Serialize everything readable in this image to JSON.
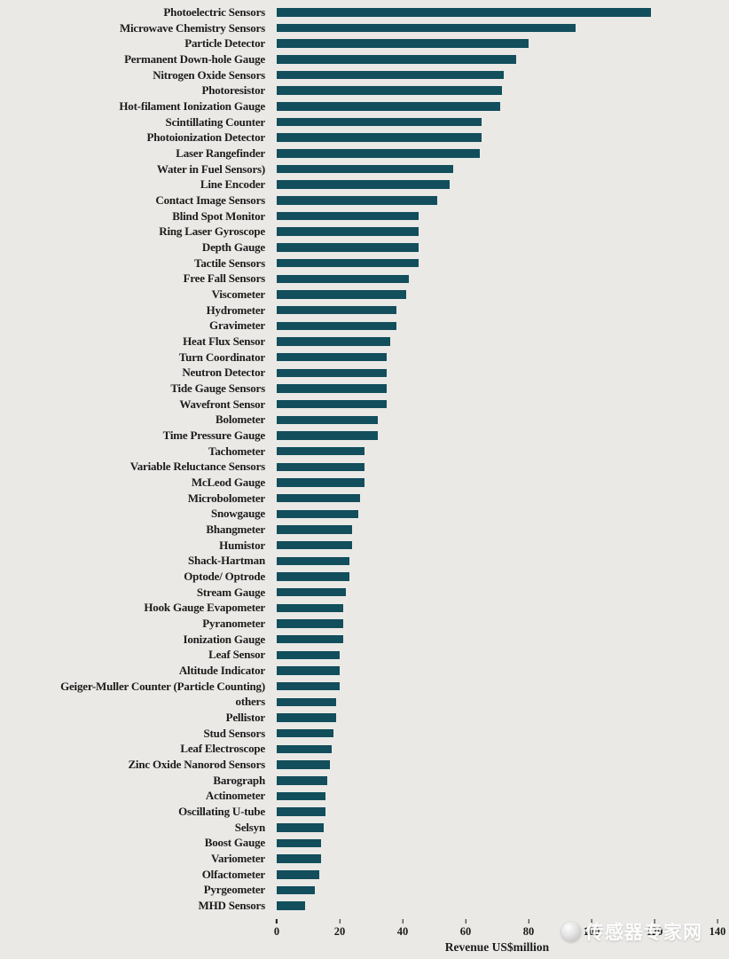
{
  "chart_data": {
    "type": "bar",
    "orientation": "horizontal",
    "title": "",
    "xlabel": "Revenue US$million",
    "ylabel": "",
    "xlim": [
      0,
      140
    ],
    "xticks": [
      0,
      20,
      40,
      60,
      80,
      100,
      120,
      140
    ],
    "grid": false,
    "legend": "none",
    "bar_color": "#124e5c",
    "categories": [
      "Photoelectric Sensors",
      "Microwave Chemistry Sensors",
      "Particle Detector",
      "Permanent Down-hole Gauge",
      "Nitrogen Oxide Sensors",
      "Photoresistor",
      "Hot-filament Ionization Gauge",
      "Scintillating Counter",
      "Photoionization Detector",
      "Laser Rangefinder",
      "Water in Fuel Sensors)",
      "Line Encoder",
      "Contact Image Sensors",
      "Blind Spot Monitor",
      "Ring Laser Gyroscope",
      "Depth Gauge",
      "Tactile Sensors",
      "Free Fall Sensors",
      "Viscometer",
      "Hydrometer",
      "Gravimeter",
      "Heat Flux Sensor",
      "Turn Coordinator",
      "Neutron Detector",
      "Tide Gauge Sensors",
      "Wavefront Sensor",
      "Bolometer",
      "Time Pressure Gauge",
      "Tachometer",
      "Variable Reluctance Sensors",
      "McLeod Gauge",
      "Microbolometer",
      "Snowgauge",
      "Bhangmeter",
      "Humistor",
      "Shack-Hartman",
      "Optode/ Optrode",
      "Stream Gauge",
      "Hook Gauge Evapometer",
      "Pyranometer",
      "Ionization Gauge",
      "Leaf Sensor",
      "Altitude Indicator",
      "Geiger-Muller Counter (Particle Counting)",
      "others",
      "Pellistor",
      "Stud Sensors",
      "Leaf Electroscope",
      "Zinc Oxide Nanorod Sensors",
      "Barograph",
      "Actinometer",
      "Oscillating U-tube",
      "Selsyn",
      "Boost Gauge",
      "Variometer",
      "Olfactometer",
      "Pyrgeometer",
      "MHD Sensors"
    ],
    "values": [
      119,
      95,
      80,
      76,
      72,
      71.5,
      71,
      65,
      65,
      64.5,
      56,
      55,
      51,
      45,
      45,
      45,
      45,
      42,
      41,
      38,
      38,
      36,
      35,
      35,
      35,
      35,
      32,
      32,
      28,
      28,
      28,
      26.5,
      26,
      24,
      24,
      23,
      23,
      22,
      21,
      21,
      21,
      20,
      20,
      20,
      19,
      19,
      18,
      17.5,
      17,
      16,
      15.5,
      15.5,
      15,
      14,
      14,
      13.5,
      12,
      9
    ]
  },
  "colors": {
    "bar": "#124e5c",
    "background": "#eae9e6",
    "text": "#1c1c1c"
  },
  "watermark": {
    "text": "传感器专家网"
  }
}
